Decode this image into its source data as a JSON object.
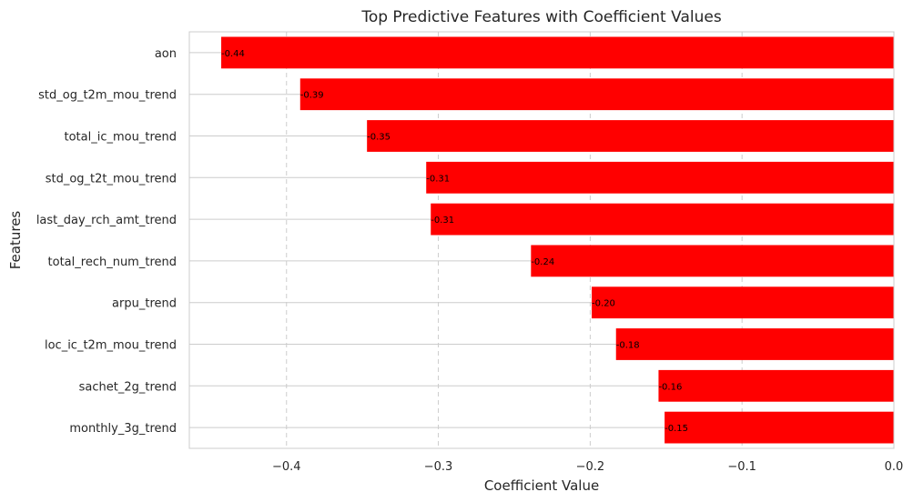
{
  "chart_data": {
    "type": "bar",
    "orientation": "horizontal",
    "title": "Top Predictive Features with Coefficient Values",
    "xlabel": "Coefficient Value",
    "ylabel": "Features",
    "categories": [
      "aon",
      "std_og_t2m_mou_trend",
      "total_ic_mou_trend",
      "std_og_t2t_mou_trend",
      "last_day_rch_amt_trend",
      "total_rech_num_trend",
      "arpu_trend",
      "loc_ic_t2m_mou_trend",
      "sachet_2g_trend",
      "monthly_3g_trend"
    ],
    "values": [
      -0.443,
      -0.391,
      -0.347,
      -0.308,
      -0.305,
      -0.239,
      -0.199,
      -0.183,
      -0.155,
      -0.151
    ],
    "data_labels": [
      "-0.44",
      "-0.39",
      "-0.35",
      "-0.31",
      "-0.31",
      "-0.24",
      "-0.20",
      "-0.18",
      "-0.16",
      "-0.15"
    ],
    "xlim": [
      -0.464,
      0.0
    ],
    "xticks": [
      -0.4,
      -0.3,
      -0.2,
      -0.1,
      0.0
    ],
    "xtick_labels": [
      "−0.4",
      "−0.3",
      "−0.2",
      "−0.1",
      "0.0"
    ],
    "grid": true,
    "bar_color": "#ff0000"
  }
}
